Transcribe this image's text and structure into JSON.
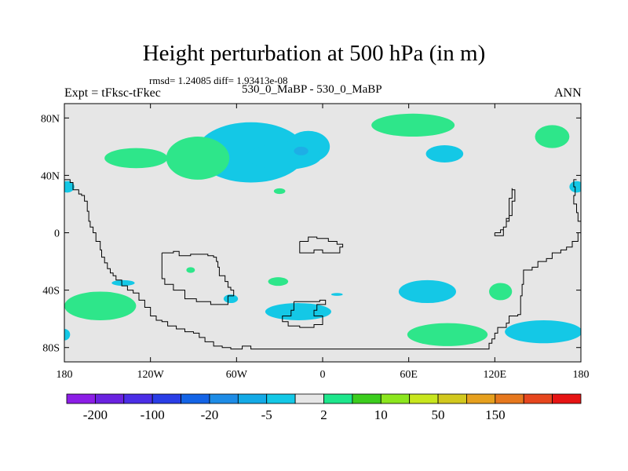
{
  "chart_data": {
    "type": "heatmap",
    "title": "Height perturbation at 500 hPa (in m)",
    "subtitle": "rmsd= 1.24085 diff= 1.93413e-08",
    "left_label": "Expt = tFksc-tFkec",
    "center_label": "530_0_MaBP - 530_0_MaBP",
    "right_label": "ANN",
    "xlim": [
      -180,
      180
    ],
    "ylim": [
      -90,
      90
    ],
    "x_ticks": [
      {
        "value": -180,
        "label": "180"
      },
      {
        "value": -120,
        "label": "120W"
      },
      {
        "value": -60,
        "label": "60W"
      },
      {
        "value": 0,
        "label": "0"
      },
      {
        "value": 60,
        "label": "60E"
      },
      {
        "value": 120,
        "label": "120E"
      },
      {
        "value": 180,
        "label": "180"
      }
    ],
    "y_ticks": [
      {
        "value": 80,
        "label": "80N"
      },
      {
        "value": 40,
        "label": "40N"
      },
      {
        "value": 0,
        "label": "0"
      },
      {
        "value": -40,
        "label": "40S"
      },
      {
        "value": -80,
        "label": "80S"
      }
    ],
    "colorbar": {
      "colors": [
        "#8c1ee6",
        "#6a22e0",
        "#4b2ee6",
        "#2a3ee6",
        "#1464e6",
        "#1e8ce6",
        "#14aae6",
        "#14c8e6",
        "#e6e6e6",
        "#1ee68c",
        "#3ccd1e",
        "#8ce61e",
        "#c8e61e",
        "#d2c81e",
        "#e6a01e",
        "#e6781e",
        "#e6461e",
        "#e61414"
      ],
      "labels": [
        {
          "boundary": 1,
          "label": "-200"
        },
        {
          "boundary": 3,
          "label": "-100"
        },
        {
          "boundary": 5,
          "label": "-20"
        },
        {
          "boundary": 7,
          "label": "-5"
        },
        {
          "boundary": 9,
          "label": "2"
        },
        {
          "boundary": 11,
          "label": "10"
        },
        {
          "boundary": 13,
          "label": "50"
        },
        {
          "boundary": 15,
          "label": "150"
        }
      ]
    },
    "field_colors": {
      "background": "#e6e6e6",
      "positive": "#2ee68a",
      "negative": "#14c8e6",
      "negative_core": "#1eaee6"
    },
    "regions": [
      {
        "sign": "negative",
        "lon": -50,
        "lat": 56,
        "rx": 38,
        "ry": 21
      },
      {
        "sign": "negative",
        "lon": -10,
        "lat": 60,
        "rx": 15,
        "ry": 11
      },
      {
        "sign": "negative",
        "lon": -27,
        "lat": 53,
        "rx": 26,
        "ry": 9
      },
      {
        "sign": "core",
        "lon": -15,
        "lat": 57,
        "rx": 5,
        "ry": 3
      },
      {
        "sign": "negative",
        "lon": 85,
        "lat": 55,
        "rx": 13,
        "ry": 6
      },
      {
        "sign": "negative",
        "lon": 177,
        "lat": 32,
        "rx": 5,
        "ry": 4
      },
      {
        "sign": "negative",
        "lon": -178,
        "lat": 32,
        "rx": 5,
        "ry": 4
      },
      {
        "sign": "negative",
        "lon": -139,
        "lat": -35,
        "rx": 8,
        "ry": 2
      },
      {
        "sign": "negative",
        "lon": -64,
        "lat": -46,
        "rx": 5,
        "ry": 3
      },
      {
        "sign": "negative",
        "lon": -17,
        "lat": -55,
        "rx": 23,
        "ry": 6
      },
      {
        "sign": "negative",
        "lon": 10,
        "lat": -43,
        "rx": 4,
        "ry": 1
      },
      {
        "sign": "negative",
        "lon": 73,
        "lat": -41,
        "rx": 20,
        "ry": 8
      },
      {
        "sign": "negative",
        "lon": 154,
        "lat": -69,
        "rx": 27,
        "ry": 8
      },
      {
        "sign": "negative",
        "lon": -180,
        "lat": -71,
        "rx": 4,
        "ry": 4
      },
      {
        "sign": "positive",
        "lon": -130,
        "lat": 52,
        "rx": 22,
        "ry": 7
      },
      {
        "sign": "positive",
        "lon": -87,
        "lat": 52,
        "rx": 22,
        "ry": 15
      },
      {
        "sign": "positive",
        "lon": 63,
        "lat": 75,
        "rx": 29,
        "ry": 8
      },
      {
        "sign": "positive",
        "lon": 160,
        "lat": 67,
        "rx": 12,
        "ry": 8
      },
      {
        "sign": "positive",
        "lon": -30,
        "lat": 29,
        "rx": 4,
        "ry": 2
      },
      {
        "sign": "positive",
        "lon": -92,
        "lat": -26,
        "rx": 3,
        "ry": 2
      },
      {
        "sign": "positive",
        "lon": -31,
        "lat": -34,
        "rx": 7,
        "ry": 3
      },
      {
        "sign": "positive",
        "lon": 124,
        "lat": -41,
        "rx": 8,
        "ry": 6
      },
      {
        "sign": "positive",
        "lon": -155,
        "lat": -51,
        "rx": 25,
        "ry": 10
      },
      {
        "sign": "positive",
        "lon": 87,
        "lat": -71,
        "rx": 28,
        "ry": 8
      }
    ],
    "coastlines": [
      [
        [
          -180,
          37
        ],
        [
          -176,
          35
        ],
        [
          -174,
          30
        ],
        [
          -170,
          27
        ],
        [
          -168,
          26
        ],
        [
          -166,
          22
        ],
        [
          -164,
          15
        ],
        [
          -163,
          8
        ],
        [
          -162,
          4
        ],
        [
          -160,
          0
        ],
        [
          -158,
          -6
        ],
        [
          -155,
          -12
        ],
        [
          -154,
          -17
        ],
        [
          -152,
          -21
        ],
        [
          -150,
          -25
        ],
        [
          -148,
          -28
        ],
        [
          -146,
          -30
        ],
        [
          -144,
          -33
        ],
        [
          -140,
          -37
        ],
        [
          -136,
          -40
        ],
        [
          -132,
          -42
        ],
        [
          -128,
          -47
        ],
        [
          -124,
          -52
        ],
        [
          -120,
          -58
        ],
        [
          -116,
          -61
        ],
        [
          -112,
          -62
        ],
        [
          -108,
          -65
        ],
        [
          -102,
          -67
        ],
        [
          -96,
          -69
        ],
        [
          -90,
          -70
        ],
        [
          -86,
          -73
        ],
        [
          -82,
          -76
        ],
        [
          -76,
          -79
        ],
        [
          -70,
          -80
        ],
        [
          -64,
          -81
        ],
        [
          -58,
          -81
        ],
        [
          -56,
          -79
        ],
        [
          -52,
          -79
        ],
        [
          -50,
          -81
        ],
        [
          -40,
          -81
        ],
        [
          -20,
          -81
        ],
        [
          0,
          -81
        ],
        [
          20,
          -81
        ],
        [
          40,
          -81
        ],
        [
          60,
          -81
        ],
        [
          80,
          -81
        ],
        [
          100,
          -81
        ],
        [
          114,
          -81
        ],
        [
          116,
          -77
        ],
        [
          118,
          -74
        ],
        [
          120,
          -70
        ],
        [
          122,
          -66
        ],
        [
          128,
          -63
        ],
        [
          130,
          -58
        ],
        [
          136,
          -57
        ],
        [
          138,
          -52
        ],
        [
          138,
          -44
        ],
        [
          139,
          -36
        ],
        [
          140,
          -26
        ],
        [
          146,
          -24
        ],
        [
          150,
          -20
        ],
        [
          156,
          -18
        ],
        [
          160,
          -14
        ],
        [
          166,
          -12
        ],
        [
          170,
          -10
        ],
        [
          174,
          -6
        ],
        [
          178,
          0
        ],
        [
          180,
          4
        ]
      ],
      [
        [
          120,
          0
        ],
        [
          124,
          2
        ],
        [
          126,
          4
        ],
        [
          128,
          8
        ],
        [
          130,
          12
        ],
        [
          132,
          22
        ],
        [
          134,
          30
        ],
        [
          132,
          31
        ],
        [
          132,
          24
        ],
        [
          130,
          18
        ],
        [
          130,
          10
        ],
        [
          128,
          4
        ],
        [
          126,
          -2
        ],
        [
          120,
          -1
        ],
        [
          120,
          0
        ]
      ],
      [
        [
          177,
          37
        ],
        [
          175,
          32
        ],
        [
          176,
          26
        ],
        [
          175,
          20
        ],
        [
          177,
          14
        ],
        [
          178,
          8
        ],
        [
          180,
          4
        ]
      ],
      [
        [
          -112,
          -14
        ],
        [
          -104,
          -13
        ],
        [
          -100,
          -16
        ],
        [
          -92,
          -15
        ],
        [
          -88,
          -15
        ],
        [
          -80,
          -16
        ],
        [
          -76,
          -17
        ],
        [
          -74,
          -20
        ],
        [
          -73,
          -24
        ],
        [
          -72,
          -30
        ],
        [
          -68,
          -34
        ],
        [
          -66,
          -38
        ],
        [
          -64,
          -40
        ],
        [
          -62,
          -44
        ],
        [
          -66,
          -50
        ],
        [
          -72,
          -50
        ],
        [
          -78,
          -48
        ],
        [
          -88,
          -46
        ],
        [
          -96,
          -40
        ],
        [
          -104,
          -36
        ],
        [
          -110,
          -32
        ],
        [
          -112,
          -26
        ],
        [
          -112,
          -14
        ]
      ],
      [
        [
          -16,
          -6
        ],
        [
          -10,
          -3
        ],
        [
          -4,
          -4
        ],
        [
          4,
          -6
        ],
        [
          10,
          -8
        ],
        [
          14,
          -10
        ],
        [
          12,
          -14
        ],
        [
          6,
          -14
        ],
        [
          0,
          -12
        ],
        [
          -6,
          -14
        ],
        [
          -14,
          -14
        ],
        [
          -16,
          -10
        ],
        [
          -16,
          -6
        ]
      ],
      [
        [
          -20,
          -48
        ],
        [
          -14,
          -48
        ],
        [
          -8,
          -48
        ],
        [
          -2,
          -47
        ],
        [
          2,
          -50
        ],
        [
          -4,
          -54
        ],
        [
          -6,
          -58
        ],
        [
          0,
          -58
        ],
        [
          0,
          -64
        ],
        [
          -6,
          -66
        ],
        [
          -16,
          -65
        ],
        [
          -24,
          -62
        ],
        [
          -28,
          -58
        ],
        [
          -22,
          -54
        ],
        [
          -20,
          -48
        ]
      ]
    ]
  }
}
